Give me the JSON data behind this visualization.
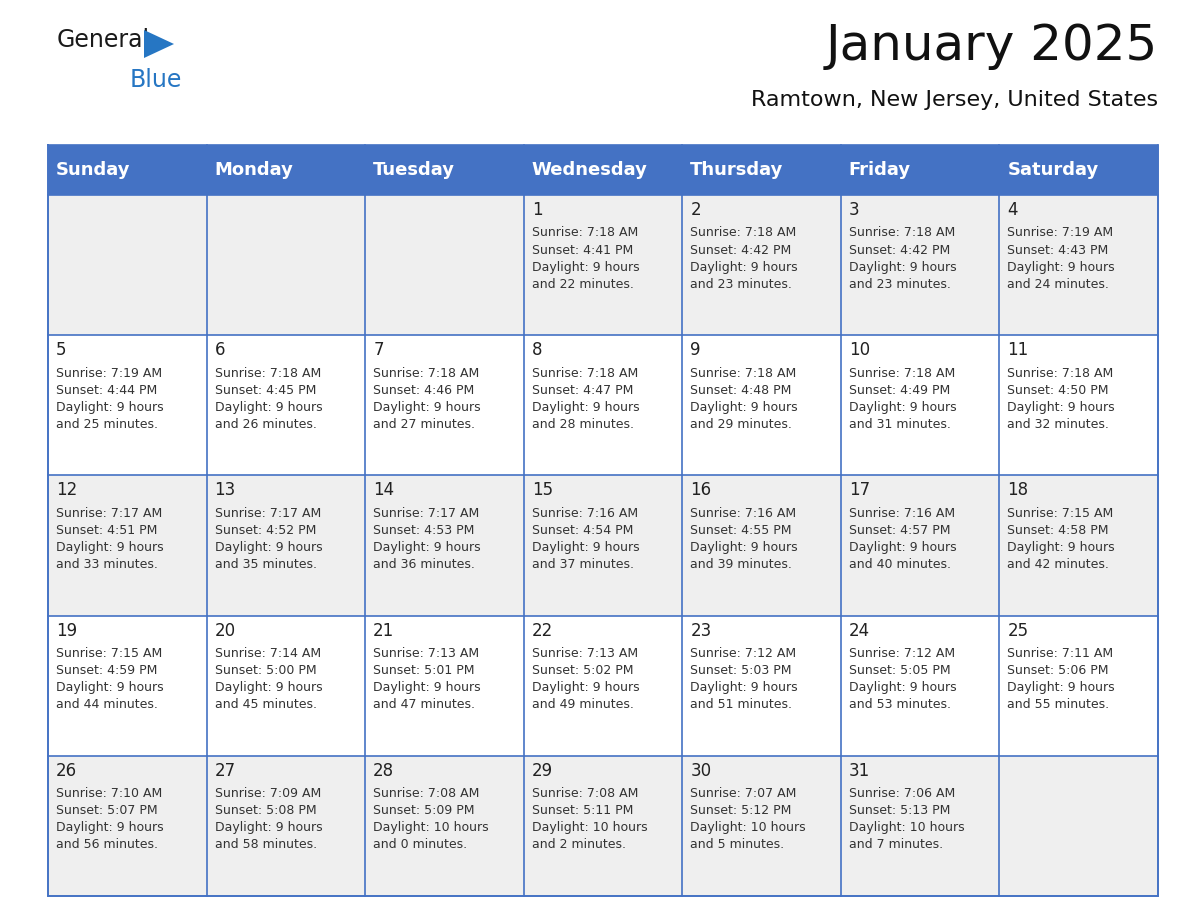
{
  "title": "January 2025",
  "subtitle": "Ramtown, New Jersey, United States",
  "header_bg": "#4472C4",
  "header_text_color": "#FFFFFF",
  "day_names": [
    "Sunday",
    "Monday",
    "Tuesday",
    "Wednesday",
    "Thursday",
    "Friday",
    "Saturday"
  ],
  "bg_color": "#FFFFFF",
  "cell_bg_even": "#EFEFEF",
  "cell_bg_odd": "#FFFFFF",
  "border_color": "#4472C4",
  "text_color": "#333333",
  "days": [
    {
      "day": 1,
      "col": 3,
      "row": 0,
      "sunrise": "7:18 AM",
      "sunset": "4:41 PM",
      "daylight": "9 hours",
      "daylight2": "and 22 minutes."
    },
    {
      "day": 2,
      "col": 4,
      "row": 0,
      "sunrise": "7:18 AM",
      "sunset": "4:42 PM",
      "daylight": "9 hours",
      "daylight2": "and 23 minutes."
    },
    {
      "day": 3,
      "col": 5,
      "row": 0,
      "sunrise": "7:18 AM",
      "sunset": "4:42 PM",
      "daylight": "9 hours",
      "daylight2": "and 23 minutes."
    },
    {
      "day": 4,
      "col": 6,
      "row": 0,
      "sunrise": "7:19 AM",
      "sunset": "4:43 PM",
      "daylight": "9 hours",
      "daylight2": "and 24 minutes."
    },
    {
      "day": 5,
      "col": 0,
      "row": 1,
      "sunrise": "7:19 AM",
      "sunset": "4:44 PM",
      "daylight": "9 hours",
      "daylight2": "and 25 minutes."
    },
    {
      "day": 6,
      "col": 1,
      "row": 1,
      "sunrise": "7:18 AM",
      "sunset": "4:45 PM",
      "daylight": "9 hours",
      "daylight2": "and 26 minutes."
    },
    {
      "day": 7,
      "col": 2,
      "row": 1,
      "sunrise": "7:18 AM",
      "sunset": "4:46 PM",
      "daylight": "9 hours",
      "daylight2": "and 27 minutes."
    },
    {
      "day": 8,
      "col": 3,
      "row": 1,
      "sunrise": "7:18 AM",
      "sunset": "4:47 PM",
      "daylight": "9 hours",
      "daylight2": "and 28 minutes."
    },
    {
      "day": 9,
      "col": 4,
      "row": 1,
      "sunrise": "7:18 AM",
      "sunset": "4:48 PM",
      "daylight": "9 hours",
      "daylight2": "and 29 minutes."
    },
    {
      "day": 10,
      "col": 5,
      "row": 1,
      "sunrise": "7:18 AM",
      "sunset": "4:49 PM",
      "daylight": "9 hours",
      "daylight2": "and 31 minutes."
    },
    {
      "day": 11,
      "col": 6,
      "row": 1,
      "sunrise": "7:18 AM",
      "sunset": "4:50 PM",
      "daylight": "9 hours",
      "daylight2": "and 32 minutes."
    },
    {
      "day": 12,
      "col": 0,
      "row": 2,
      "sunrise": "7:17 AM",
      "sunset": "4:51 PM",
      "daylight": "9 hours",
      "daylight2": "and 33 minutes."
    },
    {
      "day": 13,
      "col": 1,
      "row": 2,
      "sunrise": "7:17 AM",
      "sunset": "4:52 PM",
      "daylight": "9 hours",
      "daylight2": "and 35 minutes."
    },
    {
      "day": 14,
      "col": 2,
      "row": 2,
      "sunrise": "7:17 AM",
      "sunset": "4:53 PM",
      "daylight": "9 hours",
      "daylight2": "and 36 minutes."
    },
    {
      "day": 15,
      "col": 3,
      "row": 2,
      "sunrise": "7:16 AM",
      "sunset": "4:54 PM",
      "daylight": "9 hours",
      "daylight2": "and 37 minutes."
    },
    {
      "day": 16,
      "col": 4,
      "row": 2,
      "sunrise": "7:16 AM",
      "sunset": "4:55 PM",
      "daylight": "9 hours",
      "daylight2": "and 39 minutes."
    },
    {
      "day": 17,
      "col": 5,
      "row": 2,
      "sunrise": "7:16 AM",
      "sunset": "4:57 PM",
      "daylight": "9 hours",
      "daylight2": "and 40 minutes."
    },
    {
      "day": 18,
      "col": 6,
      "row": 2,
      "sunrise": "7:15 AM",
      "sunset": "4:58 PM",
      "daylight": "9 hours",
      "daylight2": "and 42 minutes."
    },
    {
      "day": 19,
      "col": 0,
      "row": 3,
      "sunrise": "7:15 AM",
      "sunset": "4:59 PM",
      "daylight": "9 hours",
      "daylight2": "and 44 minutes."
    },
    {
      "day": 20,
      "col": 1,
      "row": 3,
      "sunrise": "7:14 AM",
      "sunset": "5:00 PM",
      "daylight": "9 hours",
      "daylight2": "and 45 minutes."
    },
    {
      "day": 21,
      "col": 2,
      "row": 3,
      "sunrise": "7:13 AM",
      "sunset": "5:01 PM",
      "daylight": "9 hours",
      "daylight2": "and 47 minutes."
    },
    {
      "day": 22,
      "col": 3,
      "row": 3,
      "sunrise": "7:13 AM",
      "sunset": "5:02 PM",
      "daylight": "9 hours",
      "daylight2": "and 49 minutes."
    },
    {
      "day": 23,
      "col": 4,
      "row": 3,
      "sunrise": "7:12 AM",
      "sunset": "5:03 PM",
      "daylight": "9 hours",
      "daylight2": "and 51 minutes."
    },
    {
      "day": 24,
      "col": 5,
      "row": 3,
      "sunrise": "7:12 AM",
      "sunset": "5:05 PM",
      "daylight": "9 hours",
      "daylight2": "and 53 minutes."
    },
    {
      "day": 25,
      "col": 6,
      "row": 3,
      "sunrise": "7:11 AM",
      "sunset": "5:06 PM",
      "daylight": "9 hours",
      "daylight2": "and 55 minutes."
    },
    {
      "day": 26,
      "col": 0,
      "row": 4,
      "sunrise": "7:10 AM",
      "sunset": "5:07 PM",
      "daylight": "9 hours",
      "daylight2": "and 56 minutes."
    },
    {
      "day": 27,
      "col": 1,
      "row": 4,
      "sunrise": "7:09 AM",
      "sunset": "5:08 PM",
      "daylight": "9 hours",
      "daylight2": "and 58 minutes."
    },
    {
      "day": 28,
      "col": 2,
      "row": 4,
      "sunrise": "7:08 AM",
      "sunset": "5:09 PM",
      "daylight": "10 hours",
      "daylight2": "and 0 minutes."
    },
    {
      "day": 29,
      "col": 3,
      "row": 4,
      "sunrise": "7:08 AM",
      "sunset": "5:11 PM",
      "daylight": "10 hours",
      "daylight2": "and 2 minutes."
    },
    {
      "day": 30,
      "col": 4,
      "row": 4,
      "sunrise": "7:07 AM",
      "sunset": "5:12 PM",
      "daylight": "10 hours",
      "daylight2": "and 5 minutes."
    },
    {
      "day": 31,
      "col": 5,
      "row": 4,
      "sunrise": "7:06 AM",
      "sunset": "5:13 PM",
      "daylight": "10 hours",
      "daylight2": "and 7 minutes."
    }
  ],
  "logo_color_general": "#1a1a1a",
  "logo_color_blue": "#2676C3",
  "title_fontsize": 36,
  "subtitle_fontsize": 16,
  "header_fontsize": 13,
  "day_num_fontsize": 12,
  "cell_fontsize": 9
}
